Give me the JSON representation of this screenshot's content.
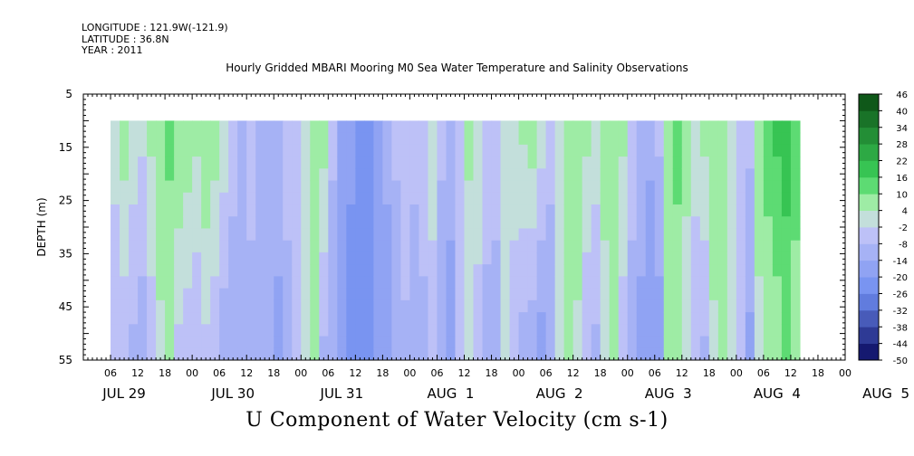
{
  "header": {
    "longitude": "LONGITUDE : 121.9W(-121.9)",
    "latitude": "LATITUDE : 36.8N",
    "year": "YEAR : 2011"
  },
  "chart_data": {
    "type": "heatmap",
    "title": "Hourly Gridded MBARI Mooring M0 Sea Water Temperature and Salinity Observations",
    "xlabel": "U Component of Water Velocity (cm s-1)",
    "ylabel": "DEPTH (m)",
    "ylim": [
      55,
      5
    ],
    "y_ticks": [
      5,
      15,
      25,
      35,
      45,
      55
    ],
    "data_depth_range": [
      10,
      55
    ],
    "x_range_hours": [
      0,
      168
    ],
    "data_start_hour": 6,
    "hour_ticks": [
      "06",
      "12",
      "18",
      "00",
      "06",
      "12",
      "18",
      "00",
      "06",
      "12",
      "18",
      "00",
      "06",
      "12",
      "18",
      "00",
      "06",
      "12",
      "18",
      "00",
      "06",
      "12",
      "18",
      "00",
      "06",
      "12",
      "18",
      "00"
    ],
    "day_labels": [
      "JUL 29",
      "JUL 30",
      "JUL 31",
      "AUG  1",
      "AUG  2",
      "AUG  3",
      "AUG  4",
      "AUG  5"
    ],
    "colorbar": {
      "levels": [
        -50,
        -44,
        -38,
        -32,
        -26,
        -20,
        -14,
        -8,
        -2,
        4,
        10,
        16,
        22,
        28,
        34,
        40,
        46
      ],
      "tick_labels": [
        "46",
        "40",
        "34",
        "28",
        "22",
        "16",
        "10",
        "4",
        "-2",
        "-8",
        "-14",
        "-20",
        "-26",
        "-32",
        "-38",
        "-44",
        "-50"
      ],
      "color_min": "#08085e",
      "color_mid_low": "#6e8cf0",
      "color_zero": "#c8c8f8",
      "color_mid_high": "#3cd25a",
      "color_max": "#0a4a12"
    },
    "column_profiles": [
      {
        "hour": 6,
        "top": 0,
        "bottom": -6
      },
      {
        "hour": 8,
        "top": 8,
        "bottom": -8
      },
      {
        "hour": 10,
        "top": 2,
        "bottom": -10
      },
      {
        "hour": 12,
        "top": 0,
        "bottom": -12
      },
      {
        "hour": 14,
        "top": 6,
        "bottom": -6
      },
      {
        "hour": 16,
        "top": 10,
        "bottom": 2
      },
      {
        "hour": 18,
        "top": 12,
        "bottom": 4
      },
      {
        "hour": 20,
        "top": 10,
        "bottom": -4
      },
      {
        "hour": 22,
        "top": 8,
        "bottom": -6
      },
      {
        "hour": 24,
        "top": 6,
        "bottom": -8
      },
      {
        "hour": 26,
        "top": 10,
        "bottom": -4
      },
      {
        "hour": 28,
        "top": 8,
        "bottom": -8
      },
      {
        "hour": 30,
        "top": 2,
        "bottom": -12
      },
      {
        "hour": 32,
        "top": -4,
        "bottom": -14
      },
      {
        "hour": 34,
        "top": -8,
        "bottom": -12
      },
      {
        "hour": 36,
        "top": -6,
        "bottom": -10
      },
      {
        "hour": 38,
        "top": -10,
        "bottom": -8
      },
      {
        "hour": 40,
        "top": -8,
        "bottom": -14
      },
      {
        "hour": 42,
        "top": -10,
        "bottom": -16
      },
      {
        "hour": 44,
        "top": -6,
        "bottom": -10
      },
      {
        "hour": 46,
        "top": -4,
        "bottom": -6
      },
      {
        "hour": 48,
        "top": -2,
        "bottom": -2
      },
      {
        "hour": 50,
        "top": 4,
        "bottom": 4
      },
      {
        "hour": 52,
        "top": 8,
        "bottom": -10
      },
      {
        "hour": 54,
        "top": -6,
        "bottom": -14
      },
      {
        "hour": 56,
        "top": -14,
        "bottom": -20
      },
      {
        "hour": 58,
        "top": -18,
        "bottom": -24
      },
      {
        "hour": 60,
        "top": -22,
        "bottom": -26
      },
      {
        "hour": 62,
        "top": -20,
        "bottom": -24
      },
      {
        "hour": 64,
        "top": -16,
        "bottom": -20
      },
      {
        "hour": 66,
        "top": -12,
        "bottom": -18
      },
      {
        "hour": 68,
        "top": -6,
        "bottom": -14
      },
      {
        "hour": 70,
        "top": -2,
        "bottom": -10
      },
      {
        "hour": 72,
        "top": -6,
        "bottom": -12
      },
      {
        "hour": 74,
        "top": -4,
        "bottom": -10
      },
      {
        "hour": 76,
        "top": 4,
        "bottom": -8
      },
      {
        "hour": 78,
        "top": -6,
        "bottom": -14
      },
      {
        "hour": 80,
        "top": -10,
        "bottom": -18
      },
      {
        "hour": 82,
        "top": -4,
        "bottom": -8
      },
      {
        "hour": 84,
        "top": 6,
        "bottom": -2
      },
      {
        "hour": 86,
        "top": 4,
        "bottom": -6
      },
      {
        "hour": 88,
        "top": -2,
        "bottom": -12
      },
      {
        "hour": 90,
        "top": -6,
        "bottom": -10
      },
      {
        "hour": 92,
        "top": -2,
        "bottom": 2
      },
      {
        "hour": 94,
        "top": 2,
        "bottom": -6
      },
      {
        "hour": 96,
        "top": 6,
        "bottom": -12
      },
      {
        "hour": 98,
        "top": 8,
        "bottom": -14
      },
      {
        "hour": 100,
        "top": 2,
        "bottom": -18
      },
      {
        "hour": 102,
        "top": -6,
        "bottom": -12
      },
      {
        "hour": 104,
        "top": -2,
        "bottom": 2
      },
      {
        "hour": 106,
        "top": 8,
        "bottom": 6
      },
      {
        "hour": 108,
        "top": 10,
        "bottom": 2
      },
      {
        "hour": 110,
        "top": 6,
        "bottom": -8
      },
      {
        "hour": 112,
        "top": 2,
        "bottom": -10
      },
      {
        "hour": 114,
        "top": 6,
        "bottom": 2
      },
      {
        "hour": 116,
        "top": 10,
        "bottom": 4
      },
      {
        "hour": 118,
        "top": 6,
        "bottom": -6
      },
      {
        "hour": 120,
        "top": -4,
        "bottom": -12
      },
      {
        "hour": 122,
        "top": -10,
        "bottom": -16
      },
      {
        "hour": 124,
        "top": -12,
        "bottom": -20
      },
      {
        "hour": 126,
        "top": -6,
        "bottom": -18
      },
      {
        "hour": 128,
        "top": 8,
        "bottom": 4
      },
      {
        "hour": 130,
        "top": 12,
        "bottom": 6
      },
      {
        "hour": 132,
        "top": 8,
        "bottom": -2
      },
      {
        "hour": 134,
        "top": 2,
        "bottom": -8
      },
      {
        "hour": 136,
        "top": 6,
        "bottom": -10
      },
      {
        "hour": 138,
        "top": 10,
        "bottom": 2
      },
      {
        "hour": 140,
        "top": 8,
        "bottom": 6
      },
      {
        "hour": 142,
        "top": 2,
        "bottom": 4
      },
      {
        "hour": 144,
        "top": -4,
        "bottom": -8
      },
      {
        "hour": 146,
        "top": -6,
        "bottom": -16
      },
      {
        "hour": 148,
        "top": 8,
        "bottom": 2
      },
      {
        "hour": 150,
        "top": 14,
        "bottom": 4
      },
      {
        "hour": 152,
        "top": 18,
        "bottom": 6
      },
      {
        "hour": 154,
        "top": 20,
        "bottom": 10
      },
      {
        "hour": 156,
        "top": 12,
        "bottom": 8
      }
    ]
  }
}
